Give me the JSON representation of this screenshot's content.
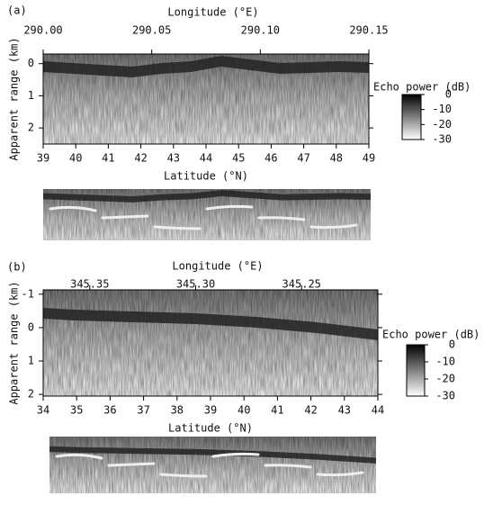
{
  "chart_data": [
    {
      "type": "radargram",
      "panel_label": "(a)",
      "x2label": "Longitude (°E)",
      "x2lim": [
        290.0,
        290.15
      ],
      "x2ticks": [
        {
          "value": 290,
          "label": "290.00"
        },
        290.05,
        {
          "value": 290.1,
          "label": "290.10"
        },
        290.15
      ],
      "xlabel": "Latitude (°N)",
      "xlim": [
        39,
        49
      ],
      "xticks": [
        39,
        40,
        41,
        42,
        43,
        44,
        45,
        46,
        47,
        48,
        49
      ],
      "ylabel": "Apparent range (km)",
      "ylim": [
        -0.3,
        2.5
      ],
      "yticks": [
        0,
        1,
        2
      ],
      "colorbar_label": "Echo power (dB)",
      "clim": [
        -30,
        0
      ],
      "cticks": [
        0,
        -10,
        -20,
        -30
      ]
    },
    {
      "type": "radargram",
      "panel_label": "(b)",
      "x2label": "Longitude (°E)",
      "x2lim": [
        345.372,
        345.214
      ],
      "x2ticks": [
        345.35,
        {
          "value": 345.3,
          "label": "345.30"
        },
        345.25
      ],
      "xlabel": "Latitude (°N)",
      "xlim": [
        34,
        44
      ],
      "xticks": [
        34,
        35,
        36,
        37,
        38,
        39,
        40,
        41,
        42,
        43,
        44
      ],
      "ylabel": "Apparent range (km)",
      "ylim": [
        -1.13,
        2.05
      ],
      "yticks": [
        -1,
        0,
        1,
        2
      ],
      "colorbar_label": "Echo power (dB)",
      "clim": [
        -30,
        0
      ],
      "cticks": [
        0,
        -10,
        -20,
        -30
      ]
    }
  ]
}
